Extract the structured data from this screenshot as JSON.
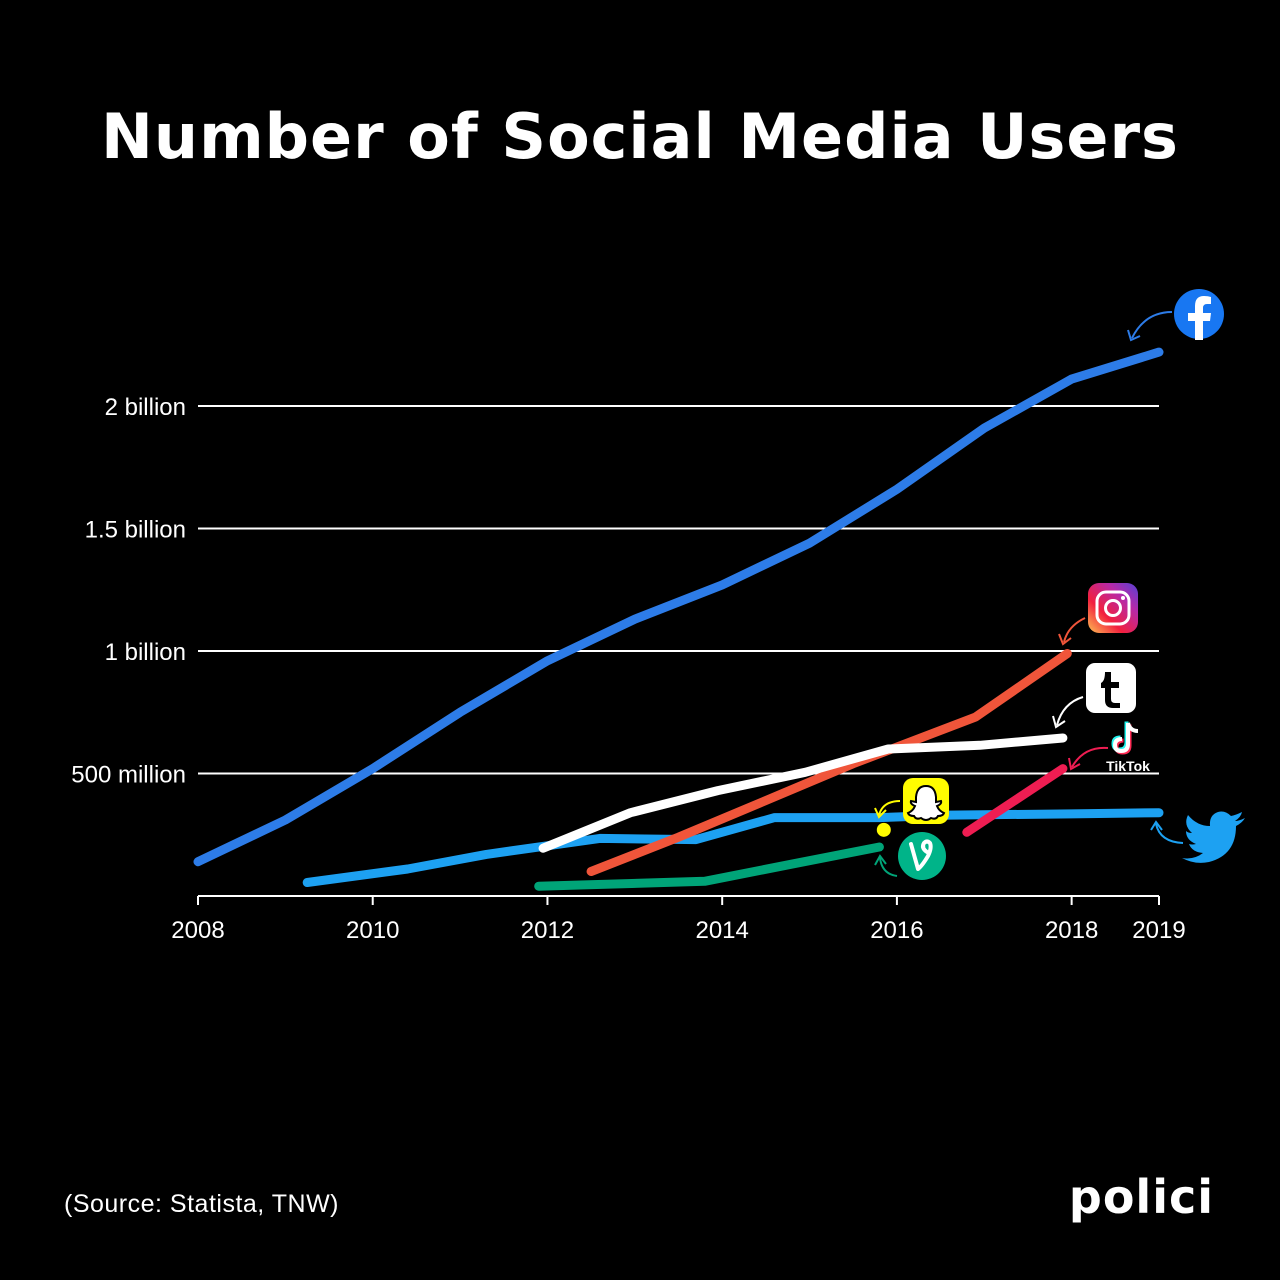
{
  "title": "Number of Social Media Users",
  "source": "(Source: Statista, TNW)",
  "brand": "polici",
  "chart_data": {
    "type": "line",
    "title": "Number of Social Media Users",
    "xlim": [
      2008,
      2019
    ],
    "ylim": [
      0,
      2200000000
    ],
    "x_ticks": [
      {
        "value": 2008,
        "label": "2008"
      },
      {
        "value": 2010,
        "label": "2010"
      },
      {
        "value": 2012,
        "label": "2012"
      },
      {
        "value": 2014,
        "label": "2014"
      },
      {
        "value": 2016,
        "label": "2016"
      },
      {
        "value": 2018,
        "label": "2018"
      },
      {
        "value": 2019,
        "label": "2019"
      }
    ],
    "y_ticks": [
      {
        "value": 500000000,
        "label": "500 million"
      },
      {
        "value": 1000000000,
        "label": "1 billion"
      },
      {
        "value": 1500000000,
        "label": "1.5 billion"
      },
      {
        "value": 2000000000,
        "label": "2 billion"
      }
    ],
    "grid": true,
    "series": [
      {
        "key": "facebook",
        "color": "#2D7CE8",
        "icon": "facebook-icon",
        "points": [
          [
            2008,
            140000000
          ],
          [
            2009,
            310000000
          ],
          [
            2010,
            520000000
          ],
          [
            2011,
            750000000
          ],
          [
            2012,
            960000000
          ],
          [
            2013,
            1130000000
          ],
          [
            2014,
            1270000000
          ],
          [
            2015,
            1440000000
          ],
          [
            2016,
            1660000000
          ],
          [
            2017,
            1910000000
          ],
          [
            2018,
            2110000000
          ],
          [
            2019,
            2220000000
          ]
        ]
      },
      {
        "key": "twitter",
        "color": "#1DA1F2",
        "icon": "twitter-icon",
        "points": [
          [
            2009.25,
            55000000
          ],
          [
            2010.4,
            110000000
          ],
          [
            2011.3,
            170000000
          ],
          [
            2012.6,
            235000000
          ],
          [
            2013.7,
            230000000
          ],
          [
            2014.6,
            320000000
          ],
          [
            2015.8,
            320000000
          ],
          [
            2016.6,
            330000000
          ],
          [
            2018,
            335000000
          ],
          [
            2019,
            340000000
          ]
        ]
      },
      {
        "key": "instagram",
        "color": "#F0553A",
        "icon": "instagram-icon",
        "points": [
          [
            2012.5,
            100000000
          ],
          [
            2013.5,
            240000000
          ],
          [
            2014.5,
            390000000
          ],
          [
            2015.5,
            540000000
          ],
          [
            2016.9,
            730000000
          ],
          [
            2017.95,
            990000000
          ]
        ]
      },
      {
        "key": "tumblr",
        "color": "#FFFFFF",
        "icon": "tumblr-icon",
        "points": [
          [
            2011.95,
            195000000
          ],
          [
            2012.95,
            340000000
          ],
          [
            2013.95,
            430000000
          ],
          [
            2014.95,
            505000000
          ],
          [
            2015.9,
            600000000
          ],
          [
            2016.95,
            615000000
          ],
          [
            2017.9,
            645000000
          ]
        ]
      },
      {
        "key": "tiktok",
        "color": "#EE1D52",
        "icon": "tiktok-icon",
        "points": [
          [
            2016.8,
            260000000
          ],
          [
            2017.9,
            520000000
          ]
        ]
      },
      {
        "key": "vine",
        "color": "#00A478",
        "icon": "vine-icon",
        "points": [
          [
            2011.9,
            40000000
          ],
          [
            2013.8,
            60000000
          ],
          [
            2014.8,
            130000000
          ],
          [
            2015.8,
            200000000
          ]
        ]
      },
      {
        "key": "snapchat",
        "color": "#FFFC00",
        "icon": "snapchat-icon",
        "points": [
          [
            2015.85,
            270000000
          ]
        ]
      }
    ],
    "logos": {
      "tiktok_text": "TikTok"
    }
  }
}
